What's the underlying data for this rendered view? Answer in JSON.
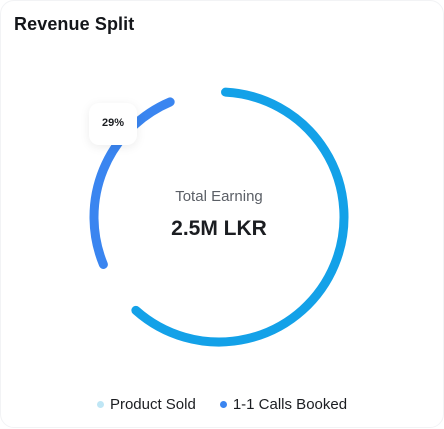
{
  "card": {
    "title": "Revenue Split"
  },
  "center": {
    "label": "Total Earning",
    "value": "2.5M LKR"
  },
  "tooltip": {
    "text": "29%"
  },
  "legend": [
    {
      "label": "Product Sold",
      "color": "#bfe6f5"
    },
    {
      "label": "1-1 Calls Booked",
      "color": "#3a85f0"
    }
  ],
  "chart_data": {
    "type": "pie",
    "series": [
      {
        "name": "Product Sold",
        "value": 71,
        "color": "#13a1e8"
      },
      {
        "name": "1-1 Calls Booked",
        "value": 29,
        "color": "#3a85f0"
      }
    ],
    "legend_position": "bottom"
  }
}
